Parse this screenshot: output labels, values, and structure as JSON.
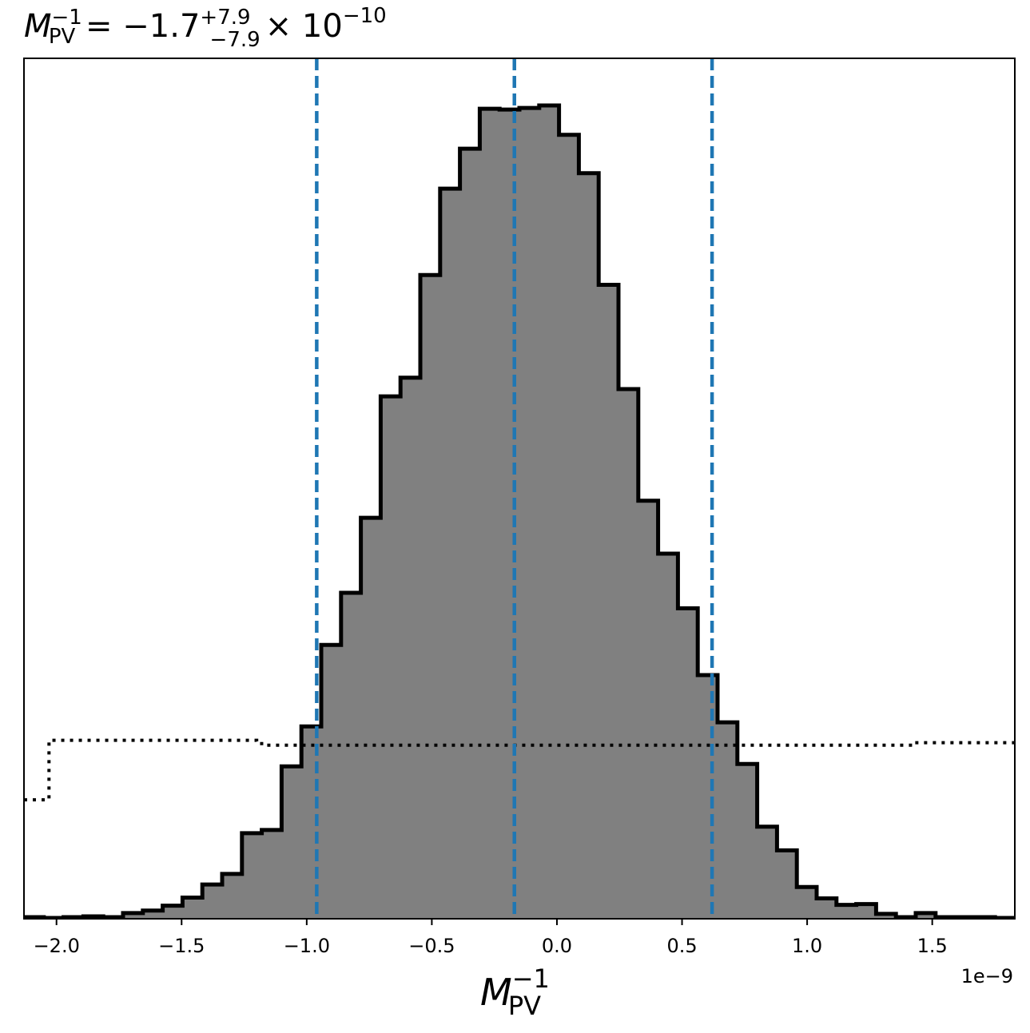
{
  "chart_data": {
    "type": "histogram",
    "title": {
      "prefix": "M",
      "prefix_sup": "−1",
      "prefix_sub": "PV",
      "equals": " = ",
      "median_text": "−1.7",
      "err_plus": "+7.9",
      "err_minus": "−7.9",
      "times_base": "× 10",
      "exponent": "−10"
    },
    "xlabel": {
      "main": "M",
      "sup": "−1",
      "sub": "PV"
    },
    "x_offset_text": "1e−9",
    "xlim": [
      -2.13,
      1.83
    ],
    "ylim": [
      0,
      1.0
    ],
    "xticks": [
      {
        "value": -2.0,
        "label": "−2.0"
      },
      {
        "value": -1.5,
        "label": "−1.5"
      },
      {
        "value": -1.0,
        "label": "−1.0"
      },
      {
        "value": -0.5,
        "label": "−0.5"
      },
      {
        "value": 0.0,
        "label": "0.0"
      },
      {
        "value": 0.5,
        "label": "0.5"
      },
      {
        "value": 1.0,
        "label": "1.0"
      },
      {
        "value": 1.5,
        "label": "1.5"
      }
    ],
    "vlines": [
      -0.96,
      -0.17,
      0.62
    ],
    "posterior": {
      "bin_start": -2.13,
      "bin_width": 0.0792,
      "values": [
        0.002,
        0.001,
        0.002,
        0.003,
        0.002,
        0.007,
        0.01,
        0.016,
        0.026,
        0.042,
        0.055,
        0.105,
        0.109,
        0.187,
        0.236,
        0.336,
        0.4,
        0.492,
        0.641,
        0.664,
        0.79,
        0.896,
        0.945,
        0.994,
        0.993,
        0.995,
        0.998,
        0.962,
        0.915,
        0.778,
        0.65,
        0.513,
        0.448,
        0.381,
        0.299,
        0.241,
        0.19,
        0.113,
        0.084,
        0.039,
        0.025,
        0.017,
        0.018,
        0.006,
        0.002,
        0.007,
        0.002,
        0.002,
        0.002,
        0.001
      ]
    },
    "prior": {
      "points": [
        [
          -2.13,
          0.146
        ],
        [
          -2.03,
          0.146
        ],
        [
          -2.03,
          0.219
        ],
        [
          -1.2,
          0.219
        ],
        [
          -1.2,
          0.215
        ],
        [
          -1.17,
          0.215
        ],
        [
          -1.17,
          0.213
        ],
        [
          1.42,
          0.213
        ],
        [
          1.42,
          0.216
        ],
        [
          1.83,
          0.216
        ]
      ]
    },
    "colors": {
      "fill": "#808080",
      "edge": "#000000",
      "vline": "#1f77b4"
    }
  }
}
